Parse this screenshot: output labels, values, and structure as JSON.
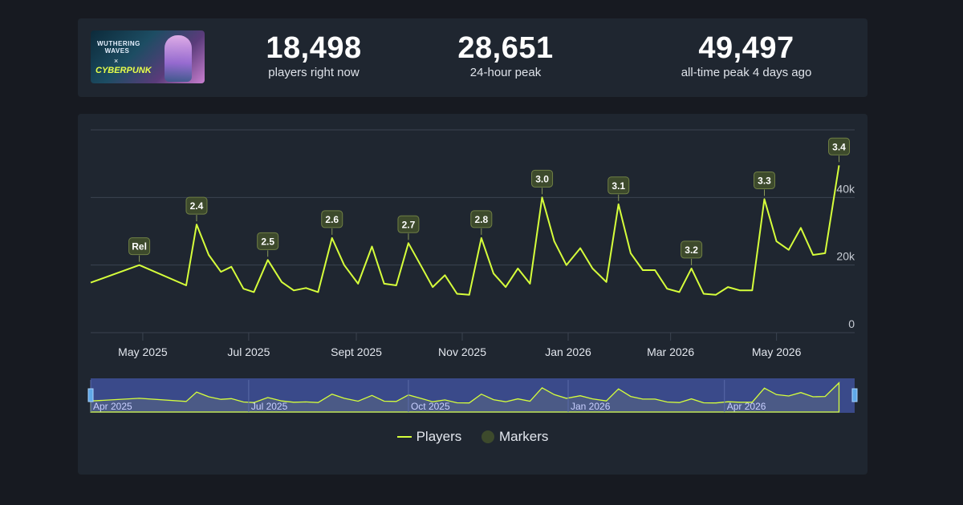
{
  "stats": {
    "current": {
      "value": "18,498",
      "label": "players right now"
    },
    "peak24": {
      "value": "28,651",
      "label": "24-hour peak"
    },
    "alltime": {
      "value": "49,497",
      "label": "all-time peak 4 days ago"
    }
  },
  "thumbnail": {
    "title_line1": "WUTHERING",
    "title_line2": "WAVES",
    "cross": "×",
    "collab": "CYBERPUNK"
  },
  "legend": {
    "players": "Players",
    "markers": "Markers"
  },
  "colors": {
    "line": "#d6ff3b",
    "marker": "#3d4a2c",
    "grid": "#3b4350",
    "navigator_bg": "#3a4a8a"
  },
  "chart_data": {
    "type": "line",
    "title": "",
    "xlabel": "",
    "ylabel": "",
    "ylim": [
      0,
      60000
    ],
    "yticks": [
      {
        "value": 0,
        "label": "0"
      },
      {
        "value": 20000,
        "label": "20k"
      },
      {
        "value": 40000,
        "label": "40k"
      }
    ],
    "x_start": "2025-04-01",
    "x_end": "2026-06-15",
    "xticks": [
      {
        "date": "2025-05-01",
        "label": "May 2025"
      },
      {
        "date": "2025-07-01",
        "label": "Jul 2025"
      },
      {
        "date": "2025-09-01",
        "label": "Sept 2025"
      },
      {
        "date": "2025-11-01",
        "label": "Nov 2025"
      },
      {
        "date": "2026-01-01",
        "label": "Jan 2026"
      },
      {
        "date": "2026-03-01",
        "label": "Mar 2026"
      },
      {
        "date": "2026-05-01",
        "label": "May 2026"
      }
    ],
    "navigator_ticks": [
      {
        "date": "2025-04-01",
        "label": "Apr 2025"
      },
      {
        "date": "2025-07-01",
        "label": "Jul 2025"
      },
      {
        "date": "2025-10-01",
        "label": "Oct 2025"
      },
      {
        "date": "2026-01-01",
        "label": "Jan 2026"
      },
      {
        "date": "2026-04-01",
        "label": "Apr 2026"
      }
    ],
    "series": [
      {
        "name": "Players",
        "points": [
          [
            "2025-04-01",
            14800
          ],
          [
            "2025-04-29",
            20000
          ],
          [
            "2025-05-26",
            14000
          ],
          [
            "2025-06-01",
            32000
          ],
          [
            "2025-06-08",
            23000
          ],
          [
            "2025-06-15",
            18000
          ],
          [
            "2025-06-21",
            19500
          ],
          [
            "2025-06-28",
            13000
          ],
          [
            "2025-07-04",
            12000
          ],
          [
            "2025-07-12",
            21500
          ],
          [
            "2025-07-20",
            15000
          ],
          [
            "2025-07-27",
            12500
          ],
          [
            "2025-08-03",
            13200
          ],
          [
            "2025-08-10",
            12000
          ],
          [
            "2025-08-18",
            28000
          ],
          [
            "2025-08-25",
            20000
          ],
          [
            "2025-09-02",
            14500
          ],
          [
            "2025-09-10",
            25500
          ],
          [
            "2025-09-17",
            14500
          ],
          [
            "2025-09-24",
            14000
          ],
          [
            "2025-10-01",
            26500
          ],
          [
            "2025-10-08",
            20000
          ],
          [
            "2025-10-15",
            13500
          ],
          [
            "2025-10-22",
            17000
          ],
          [
            "2025-10-29",
            11500
          ],
          [
            "2025-11-05",
            11200
          ],
          [
            "2025-11-12",
            28000
          ],
          [
            "2025-11-19",
            17500
          ],
          [
            "2025-11-26",
            13500
          ],
          [
            "2025-12-03",
            19000
          ],
          [
            "2025-12-10",
            14500
          ],
          [
            "2025-12-17",
            40000
          ],
          [
            "2025-12-24",
            27000
          ],
          [
            "2025-12-31",
            20000
          ],
          [
            "2026-01-08",
            25000
          ],
          [
            "2026-01-15",
            19000
          ],
          [
            "2026-01-23",
            15000
          ],
          [
            "2026-01-30",
            38000
          ],
          [
            "2026-02-06",
            23500
          ],
          [
            "2026-02-13",
            18500
          ],
          [
            "2026-02-20",
            18500
          ],
          [
            "2026-02-27",
            13000
          ],
          [
            "2026-03-06",
            12000
          ],
          [
            "2026-03-13",
            19000
          ],
          [
            "2026-03-20",
            11500
          ],
          [
            "2026-03-27",
            11200
          ],
          [
            "2026-04-03",
            13500
          ],
          [
            "2026-04-10",
            12500
          ],
          [
            "2026-04-17",
            12500
          ],
          [
            "2026-04-24",
            39500
          ],
          [
            "2026-05-01",
            27000
          ],
          [
            "2026-05-08",
            24500
          ],
          [
            "2026-05-15",
            31000
          ],
          [
            "2026-05-22",
            23000
          ],
          [
            "2026-05-29",
            23500
          ],
          [
            "2026-06-06",
            49497
          ]
        ]
      }
    ],
    "markers": [
      {
        "date": "2025-04-29",
        "label": "Rel"
      },
      {
        "date": "2025-06-01",
        "label": "2.4"
      },
      {
        "date": "2025-07-12",
        "label": "2.5"
      },
      {
        "date": "2025-08-18",
        "label": "2.6"
      },
      {
        "date": "2025-10-01",
        "label": "2.7"
      },
      {
        "date": "2025-11-12",
        "label": "2.8"
      },
      {
        "date": "2025-12-17",
        "label": "3.0"
      },
      {
        "date": "2026-01-30",
        "label": "3.1"
      },
      {
        "date": "2026-03-13",
        "label": "3.2"
      },
      {
        "date": "2026-04-24",
        "label": "3.3"
      },
      {
        "date": "2026-06-06",
        "label": "3.4"
      }
    ]
  }
}
